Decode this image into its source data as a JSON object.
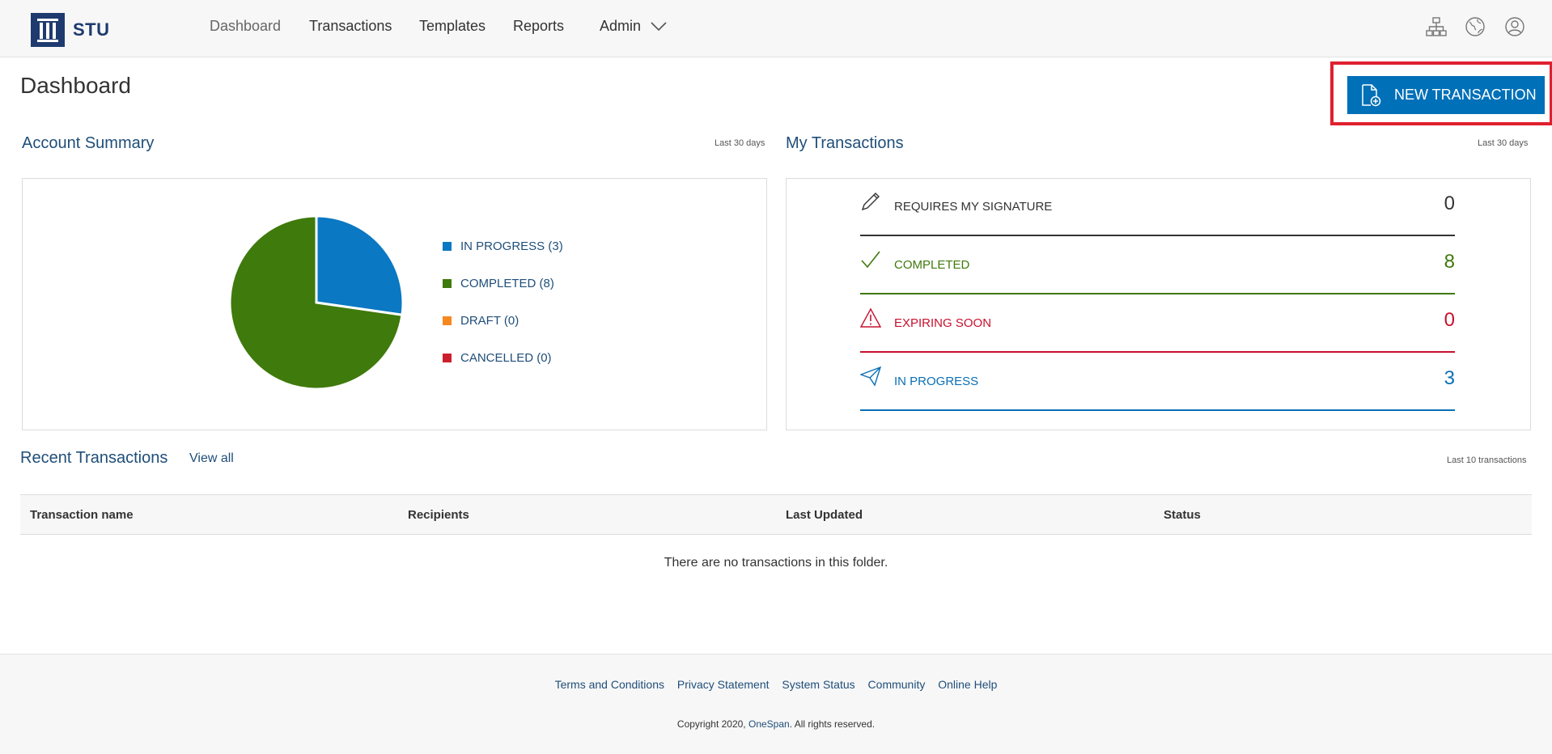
{
  "brand": {
    "name": "STU"
  },
  "nav": {
    "items": [
      {
        "label": "Dashboard"
      },
      {
        "label": "Transactions"
      },
      {
        "label": "Templates"
      },
      {
        "label": "Reports"
      },
      {
        "label": "Admin"
      }
    ]
  },
  "header_icons": [
    "org-chart-icon",
    "globe-icon",
    "user-icon"
  ],
  "page": {
    "title": "Dashboard",
    "new_transaction_label": "NEW TRANSACTION"
  },
  "account_summary": {
    "title": "Account Summary",
    "period": "Last 30 days",
    "legend": [
      {
        "label": "IN PROGRESS (3)",
        "color": "#0a78c2"
      },
      {
        "label": "COMPLETED (8)",
        "color": "#3f7a0c"
      },
      {
        "label": "DRAFT (0)",
        "color": "#f68820"
      },
      {
        "label": "CANCELLED (0)",
        "color": "#cc1f2e"
      }
    ]
  },
  "chart_data": {
    "type": "pie",
    "categories": [
      "IN PROGRESS",
      "COMPLETED",
      "DRAFT",
      "CANCELLED"
    ],
    "values": [
      3,
      8,
      0,
      0
    ],
    "colors": [
      "#0a78c2",
      "#3f7a0c",
      "#f68820",
      "#cc1f2e"
    ]
  },
  "my_transactions": {
    "title": "My Transactions",
    "period": "Last 30 days",
    "rows": [
      {
        "label": "REQUIRES MY SIGNATURE",
        "count": "0",
        "color": "#333333",
        "icon": "pencil-icon"
      },
      {
        "label": "COMPLETED",
        "count": "8",
        "color": "#3f7a0c",
        "icon": "checkmark-icon"
      },
      {
        "label": "EXPIRING SOON",
        "count": "0",
        "color": "#c8102e",
        "icon": "warning-icon"
      },
      {
        "label": "IN PROGRESS",
        "count": "3",
        "color": "#0a6fb5",
        "icon": "paper-plane-icon"
      }
    ]
  },
  "recent": {
    "title": "Recent Transactions",
    "view_all": "View all",
    "period": "Last 10 transactions",
    "columns": [
      "Transaction name",
      "Recipients",
      "Last Updated",
      "Status"
    ],
    "empty_message": "There are no transactions in this folder."
  },
  "footer": {
    "links": [
      "Terms and Conditions",
      "Privacy Statement",
      "System Status",
      "Community",
      "Online Help"
    ],
    "copyright_prefix": "Copyright 2020, ",
    "copyright_brand": "OneSpan",
    "copyright_suffix": ". All rights reserved."
  }
}
